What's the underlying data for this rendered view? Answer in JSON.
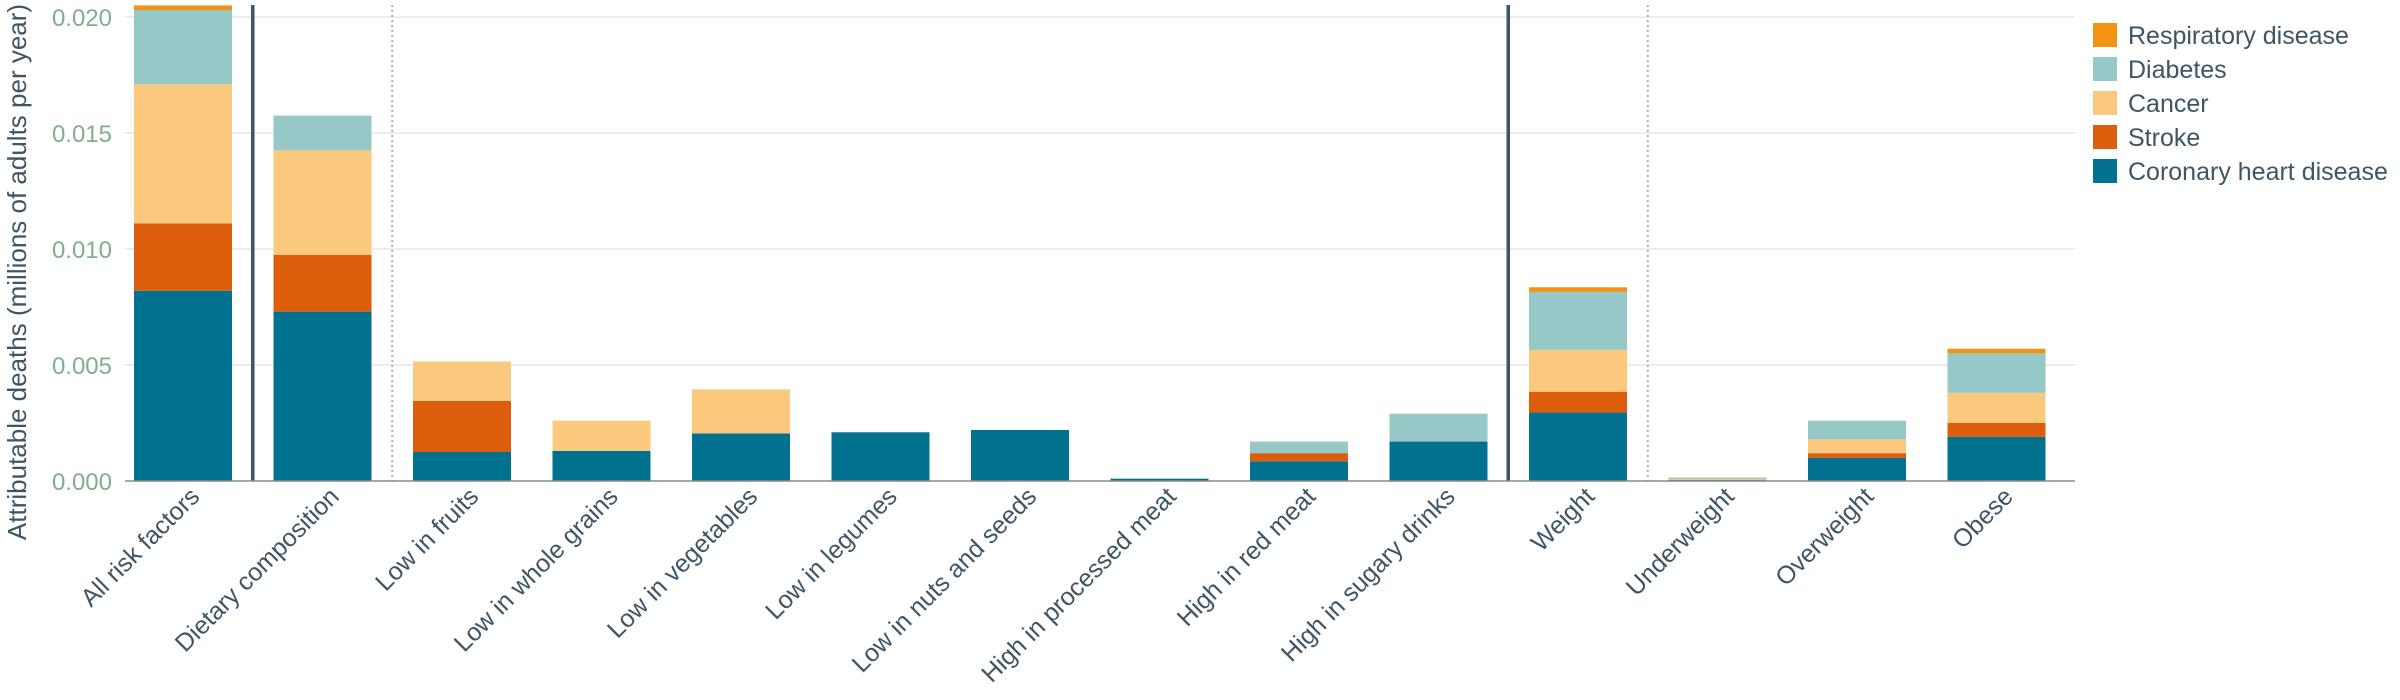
{
  "chart_data": {
    "type": "bar",
    "stacked": true,
    "ylabel": "Attributable deaths (millions of adults per year)",
    "ylim": [
      0,
      0.0205
    ],
    "yticks": [
      0.0,
      0.005,
      0.01,
      0.015,
      0.02
    ],
    "ytick_labels": [
      "0.000",
      "0.005",
      "0.010",
      "0.015",
      "0.020"
    ],
    "grid": "horizontal",
    "legend_position": "top-right",
    "categories": [
      "All risk factors",
      "Dietary composition",
      "Low in fruits",
      "Low in whole grains",
      "Low in vegetables",
      "Low in legumes",
      "Low in nuts and seeds",
      "High in processed meat",
      "High in red meat",
      "High in sugary drinks",
      "Weight",
      "Underweight",
      "Overweight",
      "Obese"
    ],
    "series": [
      {
        "name": "Coronary heart disease",
        "color": "#00718f",
        "values": [
          0.0082,
          0.0073,
          0.00125,
          0.0013,
          0.00205,
          0.0021,
          0.0022,
          0.0001,
          0.00085,
          0.0017,
          0.00295,
          5e-05,
          0.001,
          0.0019
        ]
      },
      {
        "name": "Stroke",
        "color": "#dc5e0c",
        "values": [
          0.0029,
          0.00245,
          0.0022,
          0,
          0,
          0,
          0,
          0,
          0.00035,
          0,
          0.0009,
          0,
          0.0002,
          0.0006
        ]
      },
      {
        "name": "Cancer",
        "color": "#fbc97e",
        "values": [
          0.006,
          0.0045,
          0.0017,
          0.0013,
          0.0019,
          0,
          0,
          0,
          0,
          0,
          0.0018,
          5e-05,
          0.0006,
          0.0013
        ]
      },
      {
        "name": "Diabetes",
        "color": "#95c8c6",
        "values": [
          0.0032,
          0.0015,
          0,
          0,
          0,
          0,
          0,
          0,
          0.0005,
          0.0012,
          0.0025,
          5e-05,
          0.0008,
          0.0017
        ]
      },
      {
        "name": "Respiratory disease",
        "color": "#f39314",
        "values": [
          0.0002,
          0,
          0,
          0,
          0,
          0,
          0,
          0,
          0,
          0,
          0.0002,
          0,
          0,
          0.0002
        ]
      }
    ],
    "separators": [
      {
        "after_index": 0,
        "style": "solid"
      },
      {
        "after_index": 1,
        "style": "dotted"
      },
      {
        "after_index": 9,
        "style": "solid"
      },
      {
        "after_index": 10,
        "style": "dotted"
      }
    ],
    "legend_order": [
      "Respiratory disease",
      "Diabetes",
      "Cancer",
      "Stroke",
      "Coronary heart disease"
    ]
  }
}
